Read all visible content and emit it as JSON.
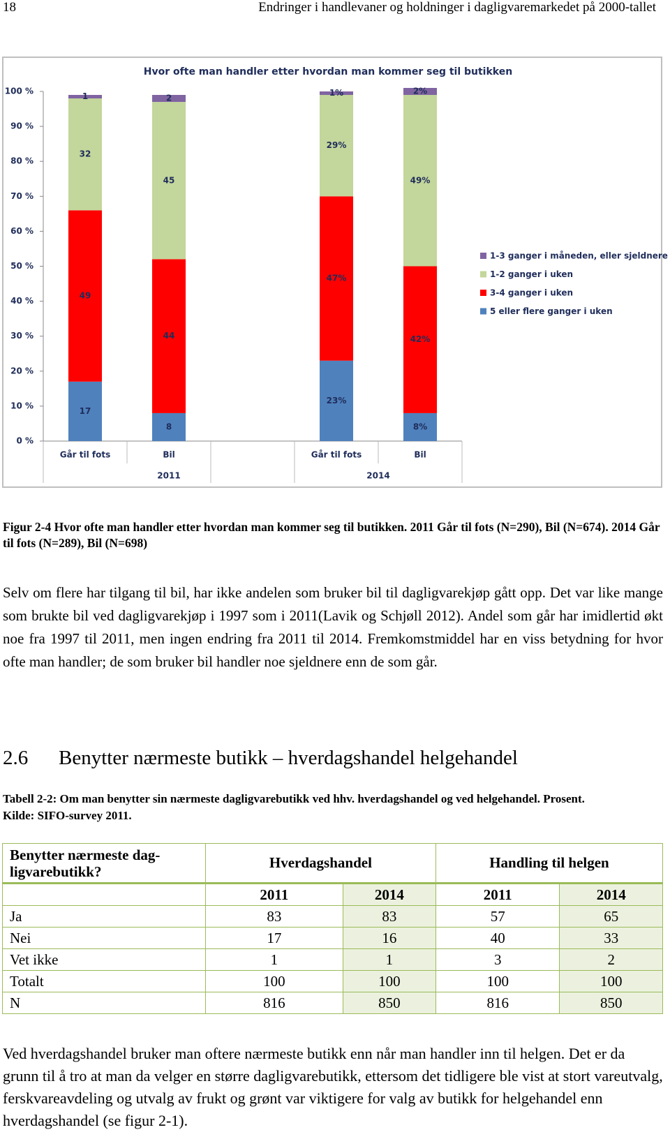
{
  "header": {
    "page_number": "18",
    "running_title": "Endringer i handlevaner og holdninger i dagligvaremarkedet på 2000-tallet"
  },
  "chart_data": {
    "type": "bar",
    "stacked": true,
    "title": "Hvor ofte man handler etter hvordan man kommer seg til butikken",
    "categories": [
      "Går til fots",
      "Bil",
      "Går til fots",
      "Bil"
    ],
    "groups": [
      "2011",
      "2014"
    ],
    "series": [
      {
        "name": "5 eller flere ganger i uken",
        "color": "#4f81bd",
        "values": [
          17,
          8,
          23,
          8
        ],
        "value_labels": [
          "17",
          "8",
          "23%",
          "8%"
        ]
      },
      {
        "name": "3-4 ganger i uken",
        "color": "#ff0000",
        "values": [
          49,
          44,
          47,
          42
        ],
        "value_labels": [
          "49",
          "44",
          "47%",
          "42%"
        ]
      },
      {
        "name": "1-2 ganger i uken",
        "color": "#c3d69b",
        "values": [
          32,
          45,
          29,
          49
        ],
        "value_labels": [
          "32",
          "45",
          "29%",
          "49%"
        ]
      },
      {
        "name": "1-3 ganger i måneden, eller sjeldnere",
        "color": "#8064a2",
        "values": [
          1,
          2,
          1,
          2
        ],
        "value_labels": [
          "1",
          "2",
          "1%",
          "2%"
        ]
      }
    ],
    "ylim": [
      0,
      100
    ],
    "yticks": [
      {
        "value": 0,
        "label": "0 %"
      },
      {
        "value": 10,
        "label": "10 %"
      },
      {
        "value": 20,
        "label": "20 %"
      },
      {
        "value": 30,
        "label": "30 %"
      },
      {
        "value": 40,
        "label": "40 %"
      },
      {
        "value": 50,
        "label": "50 %"
      },
      {
        "value": 60,
        "label": "60 %"
      },
      {
        "value": 70,
        "label": "70 %"
      },
      {
        "value": 80,
        "label": "80 %"
      },
      {
        "value": 90,
        "label": "90 %"
      },
      {
        "value": 100,
        "label": "100 %"
      }
    ],
    "legend": "right",
    "grid": false
  },
  "figure_caption": "Figur 2-4 Hvor ofte man handler etter hvordan man kommer seg til butikken. 2011 Går til fots (N=290), Bil (N=674). 2014 Går til fots (N=289), Bil (N=698)",
  "paragraph_1": "Selv om flere har tilgang til bil, har ikke andelen som bruker bil til dagligvarekjøp gått opp. Det var like mange som brukte bil ved dagligvarekjøp i 1997 som i 2011(Lavik og Schjøll 2012). Andel som går har imidlertid økt noe fra 1997 til 2011, men ingen endring fra 2011 til 2014. Fremkomstmiddel har en viss betydning for hvor ofte man handler; de som bruker bil handler noe sjeldnere enn de som går.",
  "section": {
    "number": "2.6",
    "title": "Benytter nærmeste butikk – hverdagshandel helgehandel"
  },
  "table": {
    "caption": [
      "Tabell 2-2: Om man benytter sin nærmeste dagligvarebutikk ved hhv. hverdagshandel og ved helgehandel. Prosent.",
      "Kilde: SIFO-survey 2011."
    ],
    "corner": "Benytter nærmeste dag-ligvarebutikk?",
    "group_headers": [
      "Hverdagshandel",
      "Handling til helgen"
    ],
    "years": [
      "2011",
      "2014",
      "2011",
      "2014"
    ],
    "rows": [
      [
        "Ja",
        83,
        83,
        57,
        65
      ],
      [
        "Nei",
        17,
        16,
        40,
        33
      ],
      [
        "Vet ikke",
        1,
        1,
        3,
        2
      ],
      [
        "Totalt",
        100,
        100,
        100,
        100
      ],
      [
        "N",
        816,
        850,
        816,
        850
      ]
    ]
  },
  "paragraph_2": "Ved hverdagshandel bruker man oftere nærmeste butikk enn når man handler inn til helgen. Det er da grunn til å tro at man da velger en større dagligvarebutikk, ettersom det tidligere ble vist at stort vareutvalg, ferskvareavdeling og utvalg av frukt og grønt var viktigere for valg av butikk for helgehandel enn hverdagshandel (se figur 2-1)."
}
